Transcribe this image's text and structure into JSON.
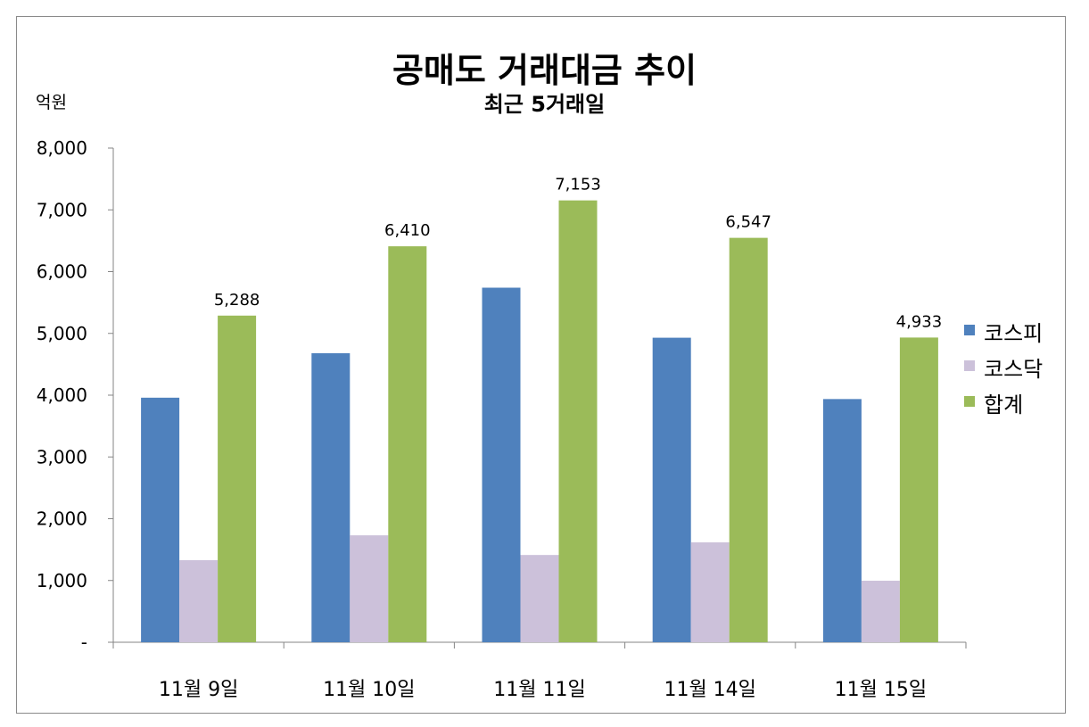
{
  "chart_data": {
    "type": "bar",
    "title": "공매도 거래대금 추이",
    "subtitle": "최근 5거래일",
    "ylabel": "억원",
    "xlabel": "",
    "ylim": [
      0,
      8000
    ],
    "yticks": [
      0,
      1000,
      2000,
      3000,
      4000,
      5000,
      6000,
      7000,
      8000
    ],
    "ytick_labels": [
      "-",
      "1,000",
      "2,000",
      "3,000",
      "4,000",
      "5,000",
      "6,000",
      "7,000",
      "8,000"
    ],
    "categories": [
      "11월 9일",
      "11월 10일",
      "11월 11일",
      "11월 14일",
      "11월 15일"
    ],
    "series": [
      {
        "name": "코스피",
        "color": "#4f81bd",
        "values": [
          3959,
          4679,
          5740,
          4930,
          3937
        ]
      },
      {
        "name": "코스닥",
        "color": "#ccc1da",
        "values": [
          1329,
          1731,
          1413,
          1617,
          996
        ]
      },
      {
        "name": "합계",
        "color": "#9bbb59",
        "values": [
          5288,
          6410,
          7153,
          6547,
          4933
        ],
        "data_labels": [
          "5,288",
          "6,410",
          "7,153",
          "6,547",
          "4,933"
        ]
      }
    ],
    "grid": false,
    "legend": "right"
  }
}
